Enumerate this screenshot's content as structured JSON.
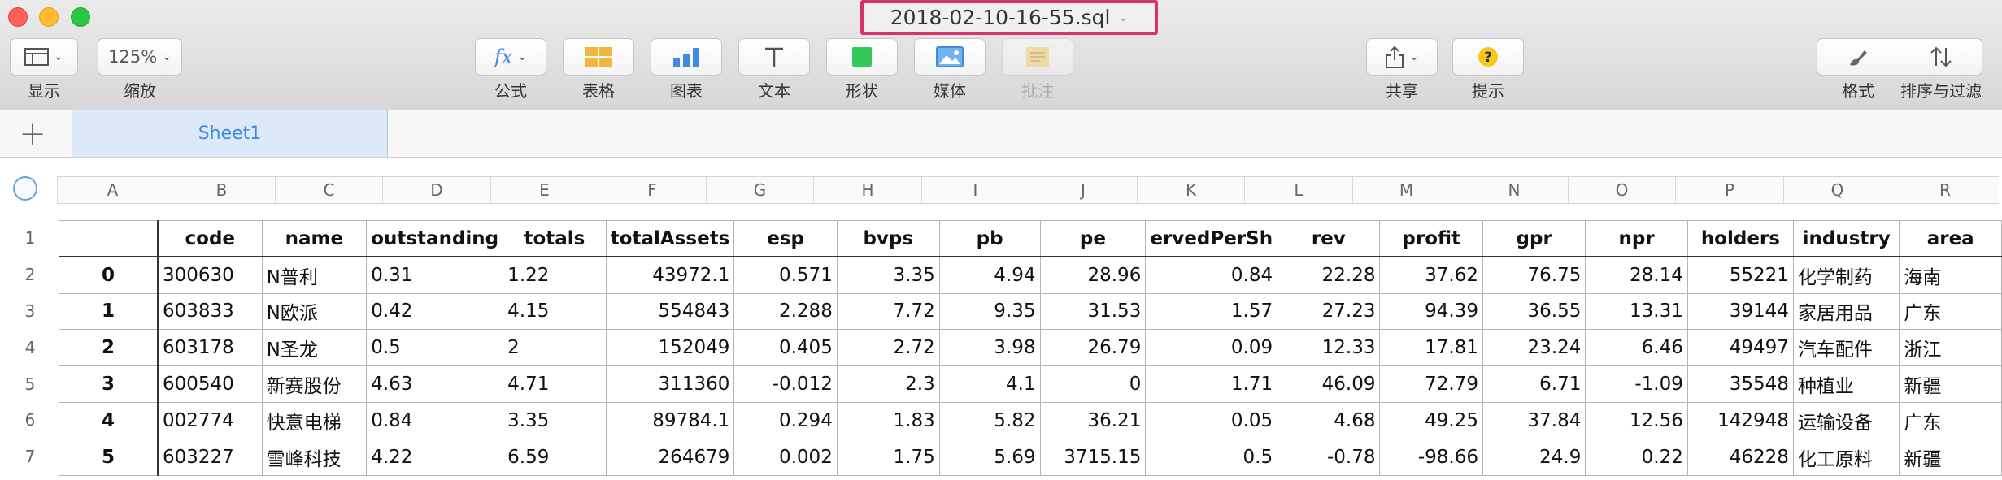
{
  "window": {
    "title": "2018-02-10-16-55.sql"
  },
  "toolbar": {
    "view_label": "显示",
    "zoom_value": "125%",
    "zoom_label": "缩放",
    "formula_label": "公式",
    "table_label": "表格",
    "chart_label": "图表",
    "text_label": "文本",
    "shape_label": "形状",
    "media_label": "媒体",
    "comment_label": "批注",
    "share_label": "共享",
    "tips_label": "提示",
    "format_label": "格式",
    "sort_label": "排序与过滤"
  },
  "icons": {
    "view": "sidebar-icon",
    "formula": "fx-icon",
    "table": "table-icon",
    "chart": "bar-chart-icon",
    "text": "text-icon",
    "shape": "square-shape-icon",
    "media": "image-icon",
    "comment": "comment-icon",
    "share": "share-icon",
    "tips": "question-icon",
    "format": "paintbrush-icon",
    "sort": "sort-arrows-icon"
  },
  "colors": {
    "accent": "#3f8ae2",
    "title_highlight": "#d6336c",
    "shape_green": "#34c759",
    "table_yellow": "#f3b53c"
  },
  "sheet": {
    "add_label": "+",
    "tab_name": "Sheet1"
  },
  "columns": [
    "A",
    "B",
    "C",
    "D",
    "E",
    "F",
    "G",
    "H",
    "I",
    "J",
    "K",
    "L",
    "M",
    "N",
    "O",
    "P",
    "Q",
    "R"
  ],
  "row_numbers": [
    "1",
    "2",
    "3",
    "4",
    "5",
    "6",
    "7"
  ],
  "table": {
    "headers": [
      "",
      "code",
      "name",
      "outstanding",
      "totals",
      "totalAssets",
      "esp",
      "bvps",
      "pb",
      "pe",
      "ervedPerSh",
      "rev",
      "profit",
      "gpr",
      "npr",
      "holders",
      "industry",
      "area"
    ],
    "rows": [
      [
        "0",
        "300630",
        "N普利",
        "0.31",
        "1.22",
        "43972.1",
        "0.571",
        "3.35",
        "4.94",
        "28.96",
        "0.84",
        "22.28",
        "37.62",
        "76.75",
        "28.14",
        "55221",
        "化学制药",
        "海南"
      ],
      [
        "1",
        "603833",
        "N欧派",
        "0.42",
        "4.15",
        "554843",
        "2.288",
        "7.72",
        "9.35",
        "31.53",
        "1.57",
        "27.23",
        "94.39",
        "36.55",
        "13.31",
        "39144",
        "家居用品",
        "广东"
      ],
      [
        "2",
        "603178",
        "N圣龙",
        "0.5",
        "2",
        "152049",
        "0.405",
        "2.72",
        "3.98",
        "26.79",
        "0.09",
        "12.33",
        "17.81",
        "23.24",
        "6.46",
        "49497",
        "汽车配件",
        "浙江"
      ],
      [
        "3",
        "600540",
        "新赛股份",
        "4.63",
        "4.71",
        "311360",
        "-0.012",
        "2.3",
        "4.1",
        "0",
        "1.71",
        "46.09",
        "72.79",
        "6.71",
        "-1.09",
        "35548",
        "种植业",
        "新疆"
      ],
      [
        "4",
        "002774",
        "快意电梯",
        "0.84",
        "3.35",
        "89784.1",
        "0.294",
        "1.83",
        "5.82",
        "36.21",
        "0.05",
        "4.68",
        "49.25",
        "37.84",
        "12.56",
        "142948",
        "运输设备",
        "广东"
      ],
      [
        "5",
        "603227",
        "雪峰科技",
        "4.22",
        "6.59",
        "264679",
        "0.002",
        "1.75",
        "5.69",
        "3715.15",
        "0.5",
        "-0.78",
        "-98.66",
        "24.9",
        "0.22",
        "46228",
        "化工原料",
        "新疆"
      ]
    ]
  }
}
